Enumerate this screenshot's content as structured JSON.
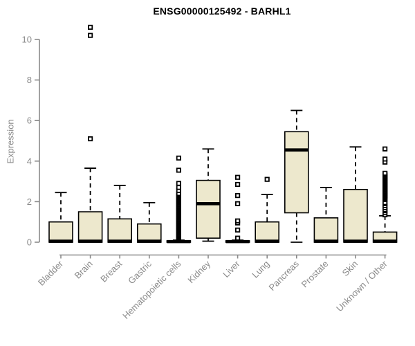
{
  "chart_data": {
    "type": "boxplot",
    "title": "ENSG00000125492 - BARHL1",
    "ylabel": "Expression",
    "xlabel": "",
    "ylim": [
      0,
      10
    ],
    "y_ticks": [
      0,
      2,
      4,
      6,
      8,
      10
    ],
    "grid": false,
    "legend": false,
    "categories": [
      "Bladder",
      "Brain",
      "Breast",
      "Gastric",
      "Hematopoietic cells",
      "Kidney",
      "Liver",
      "Lung",
      "Pancreas",
      "Prostate",
      "Skin",
      "Unknown / Other"
    ],
    "series": [
      {
        "name": "Bladder",
        "whisker_low": 0,
        "q1": 0,
        "median": 0.05,
        "q3": 1.0,
        "whisker_high": 2.45,
        "outliers": []
      },
      {
        "name": "Brain",
        "whisker_low": 0,
        "q1": 0,
        "median": 0.05,
        "q3": 1.5,
        "whisker_high": 3.65,
        "outliers": [
          5.1,
          10.2,
          10.6
        ]
      },
      {
        "name": "Breast",
        "whisker_low": 0,
        "q1": 0,
        "median": 0.05,
        "q3": 1.15,
        "whisker_high": 2.8,
        "outliers": []
      },
      {
        "name": "Gastric",
        "whisker_low": 0,
        "q1": 0,
        "median": 0.05,
        "q3": 0.9,
        "whisker_high": 1.95,
        "outliers": []
      },
      {
        "name": "Hematopoietic cells",
        "whisker_low": 0,
        "q1": 0,
        "median": 0.03,
        "q3": 0.07,
        "whisker_high": 0.1,
        "outliers": [
          0.15,
          0.2,
          0.25,
          0.3,
          0.35,
          0.4,
          0.45,
          0.5,
          0.55,
          0.6,
          0.65,
          0.7,
          0.75,
          0.8,
          0.85,
          0.9,
          0.95,
          1.0,
          1.05,
          1.1,
          1.15,
          1.2,
          1.25,
          1.3,
          1.35,
          1.4,
          1.45,
          1.5,
          1.55,
          1.6,
          1.65,
          1.7,
          1.75,
          1.8,
          1.85,
          1.9,
          1.95,
          2.0,
          2.05,
          2.1,
          2.15,
          2.2,
          2.25,
          2.3,
          2.35,
          2.4,
          2.55,
          2.7,
          2.9,
          3.55,
          4.15
        ]
      },
      {
        "name": "Kidney",
        "whisker_low": 0.05,
        "q1": 0.2,
        "median": 1.9,
        "q3": 3.05,
        "whisker_high": 4.6,
        "outliers": []
      },
      {
        "name": "Liver",
        "whisker_low": 0,
        "q1": 0,
        "median": 0.03,
        "q3": 0.07,
        "whisker_high": 0.1,
        "outliers": [
          0.2,
          0.6,
          0.95,
          1.05,
          1.9,
          2.3,
          2.85,
          3.2
        ]
      },
      {
        "name": "Lung",
        "whisker_low": 0,
        "q1": 0,
        "median": 0.05,
        "q3": 1.0,
        "whisker_high": 2.35,
        "outliers": [
          3.1
        ]
      },
      {
        "name": "Pancreas",
        "whisker_low": 0,
        "q1": 1.45,
        "median": 4.55,
        "q3": 5.45,
        "whisker_high": 6.5,
        "outliers": []
      },
      {
        "name": "Prostate",
        "whisker_low": 0,
        "q1": 0,
        "median": 0.05,
        "q3": 1.2,
        "whisker_high": 2.7,
        "outliers": []
      },
      {
        "name": "Skin",
        "whisker_low": 0,
        "q1": 0,
        "median": 0.05,
        "q3": 2.6,
        "whisker_high": 4.7,
        "outliers": []
      },
      {
        "name": "Unknown / Other",
        "whisker_low": 0,
        "q1": 0,
        "median": 0.05,
        "q3": 0.5,
        "whisker_high": 1.3,
        "outliers": [
          1.35,
          1.45,
          1.55,
          1.6,
          1.7,
          1.8,
          1.9,
          1.95,
          2.1,
          2.15,
          2.2,
          2.25,
          2.3,
          2.35,
          2.4,
          2.45,
          2.5,
          2.55,
          2.6,
          2.65,
          2.7,
          2.75,
          2.8,
          2.85,
          2.9,
          2.95,
          3.0,
          3.05,
          3.1,
          3.15,
          3.2,
          3.25,
          3.3,
          3.35,
          3.4,
          3.95,
          4.1,
          4.6
        ]
      }
    ],
    "colors": {
      "box_fill": "#EDE8CD",
      "box_stroke": "#000000",
      "median": "#000000",
      "whisker": "#000000",
      "outlier_stroke": "#000000",
      "outlier_fill": "#ffffff",
      "axis": "#8a8a8a",
      "tick_label": "#8a8a8a",
      "title": "#000000"
    }
  }
}
